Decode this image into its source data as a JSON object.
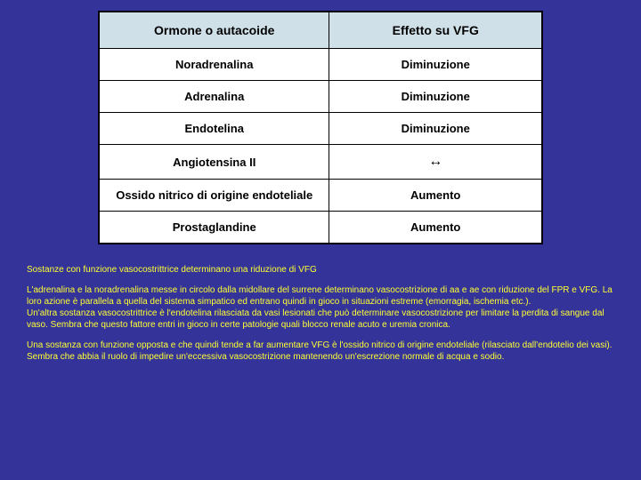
{
  "table": {
    "columns": [
      "Ormone o autacoide",
      "Effetto su VFG"
    ],
    "rows": [
      [
        "Noradrenalina",
        "Diminuzione"
      ],
      [
        "Adrenalina",
        "Diminuzione"
      ],
      [
        "Endotelina",
        "Diminuzione"
      ],
      [
        "Angiotensina II",
        "↔"
      ],
      [
        "Ossido nitrico di origine endoteliale",
        "Aumento"
      ],
      [
        "Prostaglandine",
        "Aumento"
      ]
    ],
    "header_bg": "#d0e0e8",
    "border_color": "#000000",
    "cell_bg": "#ffffff",
    "font_size_header": 14,
    "font_size_cell": 13
  },
  "captions": {
    "p1": "Sostanze con funzione vasocostrittrice determinano una riduzione di VFG",
    "p2": "L'adrenalina e la noradrenalina messe in circolo dalla midollare del surrene determinano vasocostrizione di aa e ae con riduzione del FPR e VFG. La loro azione è parallela a quella del sistema simpatico ed entrano quindi in gioco in situazioni estreme (emorragia, ischemia etc.).\nUn'altra sostanza vasocostrittrice è l'endotelina rilasciata da vasi lesionati che può determinare vasocostrizione per limitare la perdita di sangue dal vaso. Sembra che questo fattore entri in gioco in certe patologie quali blocco renale acuto e uremia cronica.",
    "p3": "Una sostanza con funzione opposta e che quindi tende a far aumentare VFG è l'ossido nitrico di origine endoteliale (rilasciato dall'endotelio dei vasi). Sembra che abbia il ruolo di impedire un'eccessiva vasocostrizione mantenendo un'escrezione normale di acqua e sodio."
  },
  "colors": {
    "page_bg": "#333399",
    "caption_text": "#ffff33"
  }
}
